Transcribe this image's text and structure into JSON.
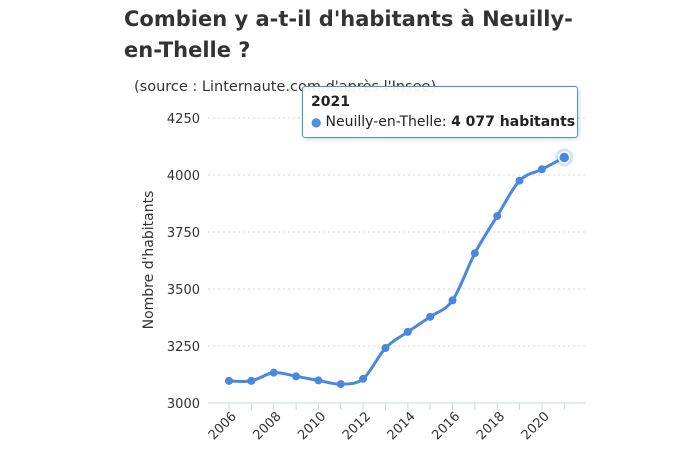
{
  "title": "Combien y a-t-il d'habitants à Neuilly-en-Thelle ?",
  "subtitle": "(source : Linternaute.com d'après l'Insee)",
  "tooltip": {
    "year": "2021",
    "series": "Neuilly-en-Thelle:",
    "value": "4 077 habitants"
  },
  "colors": {
    "line": "#4a88e0",
    "grid": "#d9d9d9",
    "axis": "#ccd6eb"
  },
  "chart_data": {
    "type": "line",
    "ylabel": "Nombre d'habitants",
    "ylim": [
      3000,
      4250
    ],
    "yticks": [
      "3000",
      "3250",
      "3500",
      "3750",
      "4000",
      "4250"
    ],
    "xticks": [
      "2006",
      "2008",
      "2010",
      "2012",
      "2014",
      "2016",
      "2018",
      "2020"
    ],
    "x": [
      2006,
      2007,
      2008,
      2009,
      2010,
      2011,
      2012,
      2013,
      2014,
      2015,
      2016,
      2017,
      2018,
      2019,
      2020,
      2021
    ],
    "series": [
      {
        "name": "Neuilly-en-Thelle",
        "values": [
          3097,
          3097,
          3133,
          3117,
          3099,
          3083,
          3106,
          3241,
          3312,
          3378,
          3450,
          3657,
          3820,
          3975,
          4025,
          4077
        ]
      }
    ]
  }
}
